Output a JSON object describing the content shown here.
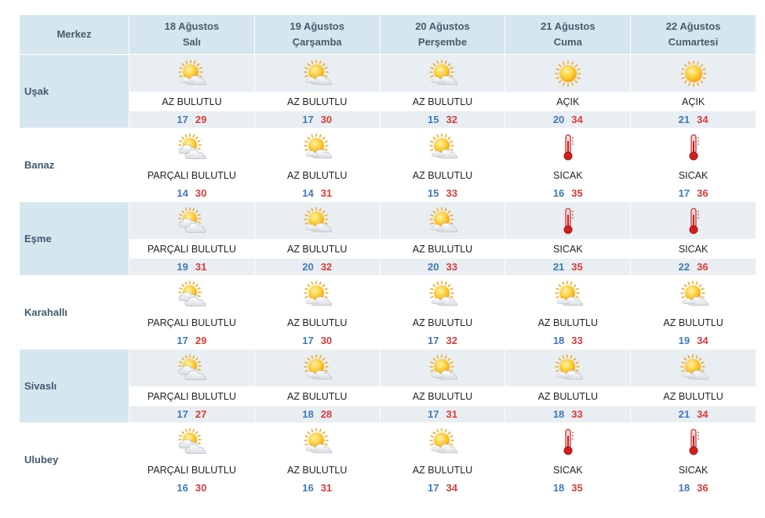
{
  "header": {
    "city_col": "Merkez",
    "days": [
      {
        "date": "18 Ağustos",
        "dow": "Salı"
      },
      {
        "date": "19 Ağustos",
        "dow": "Çarşamba"
      },
      {
        "date": "20 Ağustos",
        "dow": "Perşembe"
      },
      {
        "date": "21 Ağustos",
        "dow": "Cuma"
      },
      {
        "date": "22 Ağustos",
        "dow": "Cumartesi"
      }
    ]
  },
  "colors": {
    "min": "#3f78b8",
    "max": "#d63b3b",
    "header_bg": "#d6e6ef",
    "row_shade": "#e8eef2"
  },
  "rows": [
    {
      "city": "Uşak",
      "days": [
        {
          "icon": "partly-sunny-icon",
          "desc": "AZ BULUTLU",
          "min": "17",
          "max": "29"
        },
        {
          "icon": "partly-sunny-icon",
          "desc": "AZ BULUTLU",
          "min": "17",
          "max": "30"
        },
        {
          "icon": "partly-sunny-icon",
          "desc": "AZ BULUTLU",
          "min": "15",
          "max": "32"
        },
        {
          "icon": "sun-icon",
          "desc": "AÇIK",
          "min": "20",
          "max": "34"
        },
        {
          "icon": "sun-icon",
          "desc": "AÇIK",
          "min": "21",
          "max": "34"
        }
      ]
    },
    {
      "city": "Banaz",
      "days": [
        {
          "icon": "cloudy-sun-icon",
          "desc": "PARÇALI BULUTLU",
          "min": "14",
          "max": "30"
        },
        {
          "icon": "partly-sunny-icon",
          "desc": "AZ BULUTLU",
          "min": "14",
          "max": "31"
        },
        {
          "icon": "partly-sunny-icon",
          "desc": "AZ BULUTLU",
          "min": "15",
          "max": "33"
        },
        {
          "icon": "thermometer-icon",
          "desc": "SICAK",
          "min": "16",
          "max": "35"
        },
        {
          "icon": "thermometer-icon",
          "desc": "SICAK",
          "min": "17",
          "max": "36"
        }
      ]
    },
    {
      "city": "Eşme",
      "days": [
        {
          "icon": "cloudy-sun-icon",
          "desc": "PARÇALI BULUTLU",
          "min": "19",
          "max": "31"
        },
        {
          "icon": "partly-sunny-icon",
          "desc": "AZ BULUTLU",
          "min": "20",
          "max": "32"
        },
        {
          "icon": "partly-sunny-icon",
          "desc": "AZ BULUTLU",
          "min": "20",
          "max": "33"
        },
        {
          "icon": "thermometer-icon",
          "desc": "SICAK",
          "min": "21",
          "max": "35"
        },
        {
          "icon": "thermometer-icon",
          "desc": "SICAK",
          "min": "22",
          "max": "36"
        }
      ]
    },
    {
      "city": "Karahallı",
      "days": [
        {
          "icon": "cloudy-sun-icon",
          "desc": "PARÇALI BULUTLU",
          "min": "17",
          "max": "29"
        },
        {
          "icon": "partly-sunny-icon",
          "desc": "AZ BULUTLU",
          "min": "17",
          "max": "30"
        },
        {
          "icon": "partly-sunny-icon",
          "desc": "AZ BULUTLU",
          "min": "17",
          "max": "32"
        },
        {
          "icon": "partly-sunny-icon",
          "desc": "AZ BULUTLU",
          "min": "18",
          "max": "33"
        },
        {
          "icon": "partly-sunny-icon",
          "desc": "AZ BULUTLU",
          "min": "19",
          "max": "34"
        }
      ]
    },
    {
      "city": "Sivaslı",
      "days": [
        {
          "icon": "cloudy-sun-icon",
          "desc": "PARÇALI BULUTLU",
          "min": "17",
          "max": "27"
        },
        {
          "icon": "partly-sunny-icon",
          "desc": "AZ BULUTLU",
          "min": "18",
          "max": "28"
        },
        {
          "icon": "partly-sunny-icon",
          "desc": "AZ BULUTLU",
          "min": "17",
          "max": "31"
        },
        {
          "icon": "partly-sunny-icon",
          "desc": "AZ BULUTLU",
          "min": "18",
          "max": "33"
        },
        {
          "icon": "partly-sunny-icon",
          "desc": "AZ BULUTLU",
          "min": "21",
          "max": "34"
        }
      ]
    },
    {
      "city": "Ulubey",
      "days": [
        {
          "icon": "cloudy-sun-icon",
          "desc": "PARÇALI BULUTLU",
          "min": "16",
          "max": "30"
        },
        {
          "icon": "partly-sunny-icon",
          "desc": "AZ BULUTLU",
          "min": "16",
          "max": "31"
        },
        {
          "icon": "partly-sunny-icon",
          "desc": "AZ BULUTLU",
          "min": "17",
          "max": "34"
        },
        {
          "icon": "thermometer-icon",
          "desc": "SICAK",
          "min": "18",
          "max": "35"
        },
        {
          "icon": "thermometer-icon",
          "desc": "SICAK",
          "min": "18",
          "max": "36"
        }
      ]
    }
  ]
}
